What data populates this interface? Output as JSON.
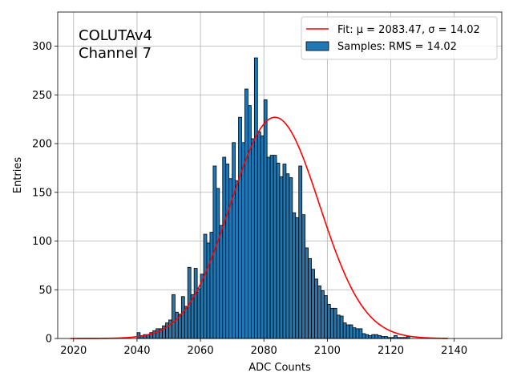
{
  "chart_data": {
    "type": "bar",
    "xlabel": "ADC Counts",
    "ylabel": "Entries",
    "xlim": [
      2015,
      2155
    ],
    "ylim": [
      0,
      335
    ],
    "xticks": [
      2020,
      2040,
      2060,
      2080,
      2100,
      2120,
      2140
    ],
    "yticks": [
      0,
      50,
      100,
      150,
      200,
      250,
      300
    ],
    "grid": true,
    "legend_position": "top-right",
    "annotation_lines": [
      "COLUTAv4",
      "Channel 7"
    ],
    "bin_width": 1,
    "colors": {
      "bars": "#1f77b4",
      "fit": "#ff0000"
    },
    "series": [
      {
        "name": "Samples: RMS = 14.02",
        "bin_start": 2040,
        "values": [
          6,
          3,
          4,
          4,
          6,
          8,
          10,
          10,
          13,
          16,
          19,
          45,
          27,
          25,
          43,
          33,
          73,
          45,
          72,
          51,
          66,
          107,
          98,
          109,
          177,
          154,
          116,
          186,
          179,
          164,
          201,
          162,
          227,
          201,
          256,
          239,
          205,
          288,
          212,
          208,
          245,
          186,
          188,
          188,
          180,
          166,
          179,
          169,
          165,
          129,
          124,
          177,
          127,
          93,
          82,
          71,
          61,
          54,
          49,
          44,
          35,
          31,
          31,
          24,
          23,
          16,
          14,
          14,
          11,
          10,
          10,
          5,
          4,
          3,
          4,
          4,
          3,
          2,
          2,
          1,
          1,
          3,
          1,
          1,
          1,
          2
        ]
      },
      {
        "name": "Fit: μ = 2083.47, σ = 14.02",
        "mu": 2083.47,
        "sigma": 14.02,
        "amplitude": 227,
        "x_range": [
          2019,
          2138
        ]
      }
    ]
  }
}
